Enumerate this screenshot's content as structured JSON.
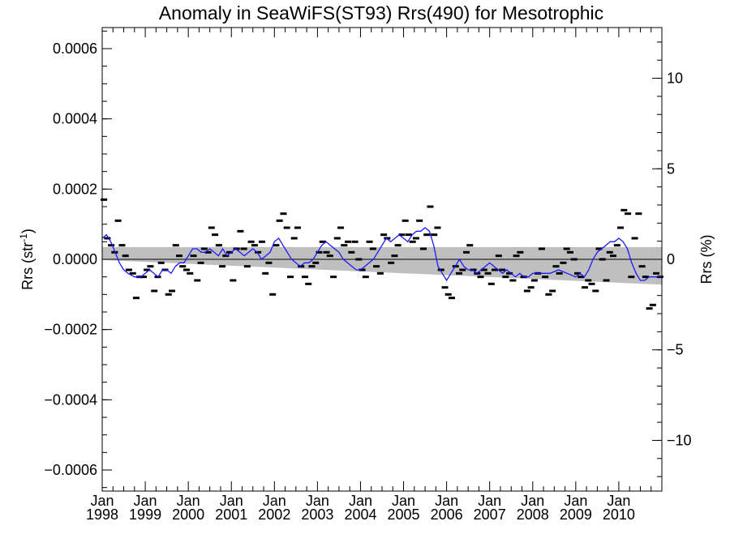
{
  "chart_data": {
    "type": "line",
    "title": "Anomaly in SeaWiFS(ST93) Rrs(490) for Mesotrophic",
    "ylabel_left": "Rrs (str",
    "ylabel_left_sup": "-1",
    "ylabel_left_close": ")",
    "ylabel_right": "Rrs (%)",
    "xlim": [
      1998.0,
      2011.0
    ],
    "ylim": [
      -0.00066,
      0.00066
    ],
    "ylim_right": [
      -12.8,
      12.8
    ],
    "grid": false,
    "colors": {
      "line": "#1a1aff",
      "band": "#bfbfbf",
      "marker": "#000000",
      "zero": "#000000"
    },
    "x_ticks": [
      {
        "x": 1998,
        "l1": "Jan",
        "l2": "1998"
      },
      {
        "x": 1999,
        "l1": "Jan",
        "l2": "1999"
      },
      {
        "x": 2000,
        "l1": "Jan",
        "l2": "2000"
      },
      {
        "x": 2001,
        "l1": "Jan",
        "l2": "2001"
      },
      {
        "x": 2002,
        "l1": "Jan",
        "l2": "2002"
      },
      {
        "x": 2003,
        "l1": "Jan",
        "l2": "2003"
      },
      {
        "x": 2004,
        "l1": "Jan",
        "l2": "2004"
      },
      {
        "x": 2005,
        "l1": "Jan",
        "l2": "2005"
      },
      {
        "x": 2006,
        "l1": "Jan",
        "l2": "2006"
      },
      {
        "x": 2007,
        "l1": "Jan",
        "l2": "2007"
      },
      {
        "x": 2008,
        "l1": "Jan",
        "l2": "2008"
      },
      {
        "x": 2009,
        "l1": "Jan",
        "l2": "2009"
      },
      {
        "x": 2010,
        "l1": "Jan",
        "l2": "2010"
      }
    ],
    "y_ticks_left": [
      {
        "v": 0.0006,
        "label": "0.0006"
      },
      {
        "v": 0.0004,
        "label": "0.0004"
      },
      {
        "v": 0.0002,
        "label": "0.0002"
      },
      {
        "v": 0.0,
        "label": "0.0000"
      },
      {
        "v": -0.0002,
        "label": "−0.0002"
      },
      {
        "v": -0.0004,
        "label": "−0.0004"
      },
      {
        "v": -0.0006,
        "label": "−0.0006"
      }
    ],
    "y_ticks_right": [
      {
        "v": 10,
        "label": "10"
      },
      {
        "v": 5,
        "label": "5"
      },
      {
        "v": 0,
        "label": "0"
      },
      {
        "v": -5,
        "label": "−5"
      },
      {
        "v": -10,
        "label": "−10"
      }
    ],
    "trend_band": {
      "x": [
        1998.0,
        2011.0
      ],
      "upper": [
        3.5e-05,
        3.5e-05
      ],
      "lower": [
        -2e-06,
        -7.2e-05
      ]
    },
    "series": [
      {
        "kind": "smoothed",
        "x": [
          1998.0,
          1998.1,
          1998.2,
          1998.3,
          1998.4,
          1998.5,
          1998.6,
          1998.75,
          1998.9,
          1999.0,
          1999.1,
          1999.2,
          1999.3,
          1999.4,
          1999.5,
          1999.6,
          1999.7,
          1999.8,
          1999.9,
          2000.0,
          2000.1,
          2000.2,
          2000.3,
          2000.4,
          2000.5,
          2000.6,
          2000.7,
          2000.8,
          2000.9,
          2001.0,
          2001.1,
          2001.2,
          2001.3,
          2001.4,
          2001.5,
          2001.6,
          2001.7,
          2001.8,
          2001.9,
          2002.0,
          2002.1,
          2002.2,
          2002.3,
          2002.4,
          2002.5,
          2002.6,
          2002.7,
          2002.8,
          2002.9,
          2003.0,
          2003.1,
          2003.2,
          2003.3,
          2003.4,
          2003.5,
          2003.6,
          2003.7,
          2003.8,
          2003.9,
          2004.0,
          2004.1,
          2004.2,
          2004.3,
          2004.4,
          2004.5,
          2004.6,
          2004.7,
          2004.8,
          2004.9,
          2005.0,
          2005.1,
          2005.2,
          2005.3,
          2005.4,
          2005.5,
          2005.6,
          2005.7,
          2005.8,
          2005.9,
          2006.0,
          2006.1,
          2006.2,
          2006.3,
          2006.4,
          2006.5,
          2006.6,
          2006.7,
          2006.8,
          2006.9,
          2007.0,
          2007.1,
          2007.2,
          2007.3,
          2007.4,
          2007.5,
          2007.6,
          2007.7,
          2007.8,
          2007.9,
          2008.0,
          2008.2,
          2008.4,
          2008.6,
          2008.8,
          2009.0,
          2009.1,
          2009.2,
          2009.3,
          2009.4,
          2009.5,
          2009.6,
          2009.7,
          2009.8,
          2009.9,
          2010.0,
          2010.1,
          2010.2,
          2010.3,
          2010.4,
          2010.5,
          2010.6,
          2010.7,
          2010.8,
          2010.9,
          2011.0
        ],
        "y": [
          6e-05,
          7e-05,
          5e-05,
          2e-05,
          -1e-05,
          -3e-05,
          -4e-05,
          -5e-05,
          -5e-05,
          -4e-05,
          -3e-05,
          -4e-05,
          -5e-05,
          -3e-05,
          -3e-05,
          -4e-05,
          -2e-05,
          -1e-05,
          -1e-05,
          1e-05,
          3e-05,
          3e-05,
          2e-05,
          2e-05,
          3e-05,
          2e-05,
          1e-05,
          3e-05,
          1e-05,
          2e-05,
          3e-05,
          2e-05,
          1e-05,
          2e-05,
          3e-05,
          2e-05,
          0.0,
          1e-05,
          2e-05,
          5e-05,
          6e-05,
          4e-05,
          2e-05,
          0.0,
          -1e-05,
          -2e-05,
          -1e-05,
          -1e-05,
          0.0,
          2e-05,
          4e-05,
          5e-05,
          4e-05,
          3e-05,
          2e-05,
          0.0,
          -1e-05,
          -2e-05,
          -3e-05,
          -3e-05,
          -2e-05,
          -1e-05,
          0.0,
          2e-05,
          4e-05,
          6e-05,
          5e-05,
          6e-05,
          7e-05,
          6e-05,
          5e-05,
          7e-05,
          8e-05,
          8e-05,
          9e-05,
          8e-05,
          4e-05,
          -2e-05,
          -4e-05,
          -6e-05,
          -4e-05,
          -2e-05,
          0.0,
          -2e-05,
          -3e-05,
          -3e-05,
          -4e-05,
          -3e-05,
          -2e-05,
          -1e-05,
          -2e-05,
          -3e-05,
          -4e-05,
          -3e-05,
          -4e-05,
          -5e-05,
          -4e-05,
          -5e-05,
          -5e-05,
          -4e-05,
          -4e-05,
          -4e-05,
          -3e-05,
          -4e-05,
          -5e-05,
          -4e-05,
          -5e-05,
          -3e-05,
          0.0,
          2e-05,
          3e-05,
          4e-05,
          5e-05,
          5e-05,
          6e-05,
          5e-05,
          3e-05,
          -1e-05,
          -4e-05,
          -6e-05,
          -6e-05,
          -5e-05,
          -5e-05,
          -5e-05,
          -5e-05
        ]
      },
      {
        "kind": "monthly",
        "x": [
          1998.04,
          1998.12,
          1998.21,
          1998.29,
          1998.37,
          1998.46,
          1998.54,
          1998.62,
          1998.71,
          1998.79,
          1998.87,
          1998.96,
          1999.04,
          1999.12,
          1999.21,
          1999.29,
          1999.37,
          1999.46,
          1999.54,
          1999.62,
          1999.71,
          1999.79,
          1999.87,
          1999.96,
          2000.04,
          2000.12,
          2000.21,
          2000.29,
          2000.37,
          2000.46,
          2000.54,
          2000.62,
          2000.71,
          2000.79,
          2000.87,
          2000.96,
          2001.04,
          2001.12,
          2001.21,
          2001.29,
          2001.37,
          2001.46,
          2001.54,
          2001.62,
          2001.71,
          2001.79,
          2001.87,
          2001.96,
          2002.04,
          2002.12,
          2002.21,
          2002.29,
          2002.37,
          2002.46,
          2002.54,
          2002.62,
          2002.71,
          2002.79,
          2002.87,
          2002.96,
          2003.04,
          2003.12,
          2003.21,
          2003.29,
          2003.37,
          2003.46,
          2003.54,
          2003.62,
          2003.71,
          2003.79,
          2003.87,
          2003.96,
          2004.04,
          2004.12,
          2004.21,
          2004.29,
          2004.37,
          2004.46,
          2004.54,
          2004.62,
          2004.71,
          2004.79,
          2004.87,
          2004.96,
          2005.04,
          2005.12,
          2005.21,
          2005.29,
          2005.37,
          2005.46,
          2005.54,
          2005.62,
          2005.71,
          2005.79,
          2005.87,
          2005.96,
          2006.04,
          2006.12,
          2006.21,
          2006.29,
          2006.37,
          2006.46,
          2006.54,
          2006.62,
          2006.71,
          2006.79,
          2006.87,
          2006.96,
          2007.04,
          2007.12,
          2007.21,
          2007.29,
          2007.37,
          2007.46,
          2007.54,
          2007.62,
          2007.71,
          2007.79,
          2007.87,
          2007.96,
          2008.04,
          2008.12,
          2008.21,
          2008.29,
          2008.37,
          2008.46,
          2008.54,
          2008.62,
          2008.71,
          2008.79,
          2008.87,
          2008.96,
          2009.04,
          2009.12,
          2009.21,
          2009.29,
          2009.37,
          2009.46,
          2009.54,
          2009.62,
          2009.71,
          2009.79,
          2009.87,
          2009.96,
          2010.04,
          2010.12,
          2010.21,
          2010.29,
          2010.37,
          2010.46,
          2010.54,
          2010.62,
          2010.71,
          2010.79,
          2010.87,
          2010.96
        ],
        "y": [
          0.00017,
          6e-05,
          4e-05,
          2e-05,
          0.00011,
          4e-05,
          1e-05,
          -3e-05,
          -4e-05,
          -0.00011,
          -5e-05,
          -5e-05,
          -3e-05,
          -2e-05,
          -9e-05,
          -5e-05,
          -1e-05,
          -3e-05,
          -0.0001,
          -9e-05,
          4e-05,
          1e-05,
          -2e-05,
          -3e-05,
          -4e-05,
          1e-05,
          -6e-05,
          -1e-05,
          3e-05,
          2e-05,
          9e-05,
          7e-05,
          4e-05,
          -2e-05,
          1e-05,
          2e-05,
          -6e-05,
          3e-05,
          8e-05,
          3e-05,
          -2e-05,
          5e-05,
          4e-05,
          2e-05,
          5e-05,
          -4e-05,
          -1e-05,
          -0.0001,
          4e-05,
          0.00011,
          0.00013,
          9e-05,
          -5e-05,
          6e-05,
          9e-05,
          -2e-05,
          -5e-05,
          -7e-05,
          -2e-05,
          -1e-05,
          2e-05,
          5e-05,
          2e-05,
          1e-05,
          -5e-05,
          6e-05,
          9e-05,
          4e-05,
          5e-05,
          2e-05,
          5e-05,
          0.0,
          -3e-05,
          -5e-05,
          5e-05,
          3e-05,
          -2e-05,
          -4e-05,
          7e-05,
          6e-05,
          -1e-05,
          1e-05,
          4e-05,
          7e-05,
          0.00011,
          7e-05,
          5e-05,
          6e-05,
          0.00011,
          3e-05,
          7e-05,
          0.00015,
          7e-05,
          9e-05,
          -3e-05,
          -8e-05,
          -0.0001,
          -0.00011,
          -2e-05,
          -4e-05,
          -3e-05,
          2e-05,
          4e-05,
          -3e-05,
          -4e-05,
          -5e-05,
          -3e-05,
          -4e-05,
          -7e-05,
          -3e-05,
          1e-05,
          -3e-05,
          -5e-05,
          -4e-05,
          -6e-05,
          1e-05,
          2e-05,
          -5e-05,
          -9e-05,
          -8e-05,
          -6e-05,
          -4e-05,
          3e-05,
          -5e-05,
          -0.0001,
          -9e-05,
          -2e-05,
          -4e-05,
          -1e-05,
          3e-05,
          2e-05,
          0.0,
          -4e-05,
          -5e-05,
          -8e-05,
          -6e-05,
          -7e-05,
          -9e-05,
          3e-05,
          0.0,
          -6e-05,
          2e-05,
          1e-05,
          4e-05,
          9e-05,
          0.00014,
          0.00013,
          -5e-05,
          6e-05,
          0.00013,
          -2e-05,
          -5e-05,
          -0.00014,
          -0.00013,
          -4e-05,
          -5e-05
        ]
      }
    ]
  }
}
